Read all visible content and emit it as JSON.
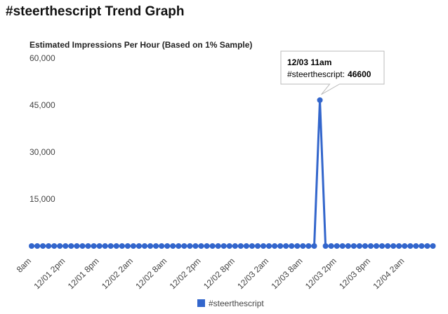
{
  "header": {
    "title": "#steerthescript Trend Graph"
  },
  "chart_data": {
    "type": "line",
    "title": "Estimated Impressions Per Hour (Based on 1% Sample)",
    "categories": [
      "8am",
      null,
      null,
      null,
      null,
      null,
      "12/01 2pm",
      null,
      null,
      null,
      null,
      null,
      "12/01 8pm",
      null,
      null,
      null,
      null,
      null,
      "12/02 2am",
      null,
      null,
      null,
      null,
      null,
      "12/02 8am",
      null,
      null,
      null,
      null,
      null,
      "12/02 2pm",
      null,
      null,
      null,
      null,
      null,
      "12/02 8pm",
      null,
      null,
      null,
      null,
      null,
      "12/03 2am",
      null,
      null,
      null,
      null,
      null,
      "12/03 8am",
      null,
      null,
      null,
      null,
      null,
      "12/03 2pm",
      null,
      null,
      null,
      null,
      null,
      "12/03 8pm",
      null,
      null,
      null,
      null,
      null,
      "12/04 2am",
      null,
      null,
      null,
      null,
      null
    ],
    "series": [
      {
        "name": "#steerthescript",
        "color": "#3366cc",
        "values": [
          0,
          0,
          0,
          0,
          0,
          0,
          0,
          0,
          0,
          0,
          0,
          0,
          0,
          0,
          0,
          0,
          0,
          0,
          0,
          0,
          0,
          0,
          0,
          0,
          0,
          0,
          0,
          0,
          0,
          0,
          0,
          0,
          0,
          0,
          0,
          0,
          0,
          0,
          0,
          0,
          0,
          0,
          0,
          0,
          0,
          0,
          0,
          0,
          0,
          0,
          0,
          46600,
          0,
          0,
          0,
          0,
          0,
          0,
          0,
          0,
          0,
          0,
          0,
          0,
          0,
          0,
          0,
          0,
          0,
          0,
          0,
          0
        ]
      }
    ],
    "ylim": [
      0,
      60000
    ],
    "yticks": [
      {
        "value": 15000,
        "label": "15,000"
      },
      {
        "value": 30000,
        "label": "30,000"
      },
      {
        "value": 45000,
        "label": "45,000"
      },
      {
        "value": 60000,
        "label": "60,000"
      }
    ],
    "grid": false,
    "legend": "bottom",
    "tooltip": {
      "title": "12/03 11am",
      "label": "#steerthescript:"
    }
  }
}
